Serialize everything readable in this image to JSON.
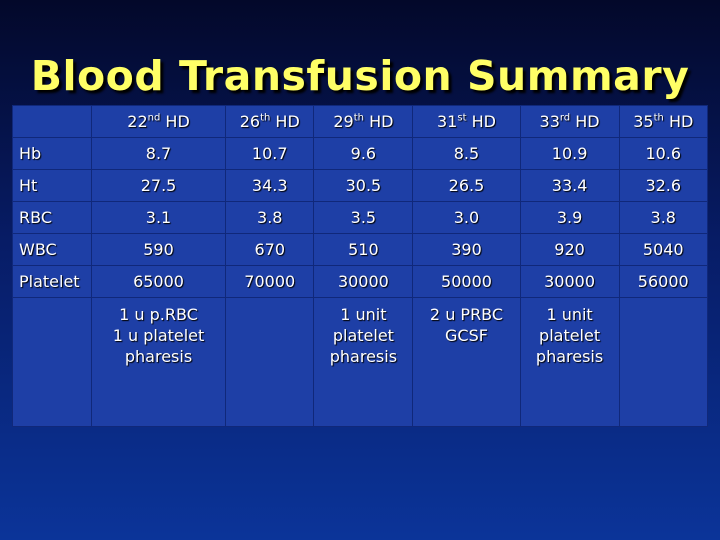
{
  "header": {
    "title": "Blood Transfusion Summary"
  },
  "table": {
    "columns": [
      {
        "number": "22",
        "ordinal": "nd",
        "unit": "HD"
      },
      {
        "number": "26",
        "ordinal": "th",
        "unit": "HD"
      },
      {
        "number": "29",
        "ordinal": "th",
        "unit": "HD"
      },
      {
        "number": "31",
        "ordinal": "st",
        "unit": "HD"
      },
      {
        "number": "33",
        "ordinal": "rd",
        "unit": "HD"
      },
      {
        "number": "35",
        "ordinal": "th",
        "unit": "HD"
      }
    ],
    "rows": [
      {
        "label": "Hb",
        "cells": [
          "8.7",
          "10.7",
          "9.6",
          "8.5",
          "10.9",
          "10.6"
        ]
      },
      {
        "label": "Ht",
        "cells": [
          "27.5",
          "34.3",
          "30.5",
          "26.5",
          "33.4",
          "32.6"
        ]
      },
      {
        "label": "RBC",
        "cells": [
          "3.1",
          "3.8",
          "3.5",
          "3.0",
          "3.9",
          "3.8"
        ]
      },
      {
        "label": "WBC",
        "cells": [
          "590",
          "670",
          "510",
          "390",
          "920",
          "5040"
        ]
      },
      {
        "label": "Platelet",
        "cells": [
          "65000",
          "70000",
          "30000",
          "50000",
          "30000",
          "56000"
        ]
      }
    ],
    "notes": [
      [
        "1 u p.RBC",
        "1 u platelet",
        "pharesis"
      ],
      null,
      [
        "1 unit",
        "platelet",
        "pharesis"
      ],
      [
        "2 u PRBC",
        "GCSF"
      ],
      [
        "1 unit",
        "platelet",
        "pharesis"
      ],
      null
    ]
  }
}
